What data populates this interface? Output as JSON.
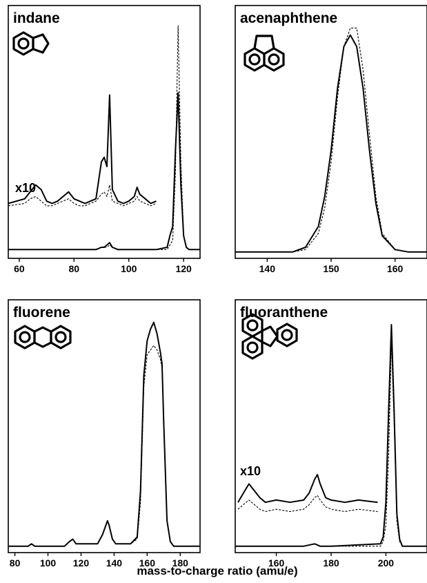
{
  "xlabel": "mass-to-charge ratio (amu/e)",
  "chart_data": [
    {
      "type": "line",
      "title": "indane",
      "xlim": [
        56,
        126
      ],
      "xticks": [
        60,
        80,
        100,
        120
      ],
      "annotation": "x10",
      "structure_icon": "indane-structure-icon",
      "series": [
        {
          "style": "solid",
          "x": [
            56,
            62,
            64,
            66,
            68,
            70,
            72,
            74,
            76,
            78,
            80,
            82,
            84,
            86,
            88,
            90,
            91,
            92,
            93,
            94,
            96,
            98,
            100,
            102,
            103,
            104,
            106,
            108,
            110
          ],
          "y": [
            0.22,
            0.24,
            0.27,
            0.3,
            0.28,
            0.23,
            0.22,
            0.23,
            0.25,
            0.27,
            0.24,
            0.23,
            0.22,
            0.23,
            0.24,
            0.4,
            0.42,
            0.38,
            0.69,
            0.28,
            0.23,
            0.22,
            0.23,
            0.25,
            0.29,
            0.26,
            0.24,
            0.22,
            0.23
          ]
        },
        {
          "style": "dashed",
          "x": [
            56,
            62,
            64,
            66,
            68,
            70,
            72,
            74,
            76,
            78,
            80,
            82,
            84,
            86,
            88,
            90,
            91,
            92,
            93,
            94,
            96,
            98,
            100,
            102,
            103,
            104,
            106,
            108,
            110
          ],
          "y": [
            0.21,
            0.22,
            0.24,
            0.25,
            0.23,
            0.21,
            0.21,
            0.22,
            0.23,
            0.24,
            0.22,
            0.21,
            0.21,
            0.22,
            0.23,
            0.26,
            0.27,
            0.25,
            0.3,
            0.23,
            0.22,
            0.21,
            0.22,
            0.23,
            0.25,
            0.23,
            0.22,
            0.21,
            0.22
          ]
        },
        {
          "style": "solid",
          "x": [
            56,
            88,
            90,
            91,
            92,
            93,
            94,
            96,
            110,
            114,
            115,
            116,
            117,
            118,
            119,
            120,
            121,
            122,
            126
          ],
          "y": [
            0.02,
            0.02,
            0.03,
            0.03,
            0.04,
            0.05,
            0.03,
            0.02,
            0.02,
            0.03,
            0.08,
            0.12,
            0.45,
            0.7,
            0.3,
            0.08,
            0.03,
            0.02,
            0.02
          ]
        },
        {
          "style": "dashed",
          "x": [
            56,
            88,
            90,
            91,
            92,
            93,
            94,
            96,
            110,
            114,
            115,
            116,
            117,
            118,
            119,
            120,
            121,
            122,
            126
          ],
          "y": [
            0.02,
            0.02,
            0.03,
            0.03,
            0.03,
            0.04,
            0.03,
            0.02,
            0.02,
            0.02,
            0.04,
            0.06,
            0.35,
            0.99,
            0.4,
            0.08,
            0.03,
            0.02,
            0.02
          ]
        }
      ]
    },
    {
      "type": "line",
      "title": "acenaphthene",
      "xlim": [
        135,
        165
      ],
      "xticks": [
        140,
        150,
        160
      ],
      "structure_icon": "acenaphthene-structure-icon",
      "series": [
        {
          "style": "solid",
          "x": [
            135,
            144,
            146,
            148,
            149,
            150,
            151,
            152,
            153,
            154,
            155,
            156,
            157,
            158,
            160,
            162,
            165
          ],
          "y": [
            0.01,
            0.01,
            0.03,
            0.12,
            0.25,
            0.45,
            0.72,
            0.9,
            0.95,
            0.9,
            0.72,
            0.45,
            0.22,
            0.08,
            0.02,
            0.01,
            0.01
          ]
        },
        {
          "style": "dashed",
          "x": [
            135,
            144,
            146,
            148,
            149,
            150,
            151,
            152,
            153,
            154,
            155,
            156,
            157,
            158,
            160,
            162,
            165
          ],
          "y": [
            0.01,
            0.01,
            0.02,
            0.09,
            0.2,
            0.4,
            0.68,
            0.9,
            0.98,
            0.98,
            0.8,
            0.52,
            0.25,
            0.09,
            0.02,
            0.01,
            0.01
          ]
        }
      ]
    },
    {
      "type": "line",
      "title": "fluorene",
      "xlim": [
        76,
        192
      ],
      "xticks": [
        80,
        100,
        120,
        140,
        160,
        180
      ],
      "structure_icon": "fluorene-structure-icon",
      "series": [
        {
          "style": "solid",
          "x": [
            76,
            88,
            90,
            92,
            110,
            113,
            115,
            117,
            130,
            133,
            135,
            136,
            137,
            139,
            141,
            150,
            154,
            156,
            158,
            160,
            162,
            164,
            166,
            168,
            169,
            170,
            172,
            174,
            176,
            192
          ],
          "y": [
            0.01,
            0.01,
            0.02,
            0.01,
            0.01,
            0.03,
            0.04,
            0.02,
            0.02,
            0.06,
            0.1,
            0.12,
            0.1,
            0.04,
            0.02,
            0.02,
            0.05,
            0.25,
            0.75,
            0.9,
            0.95,
            0.98,
            0.93,
            0.85,
            0.8,
            0.55,
            0.12,
            0.03,
            0.01,
            0.01
          ]
        },
        {
          "style": "dashed",
          "x": [
            76,
            88,
            90,
            92,
            110,
            113,
            115,
            117,
            130,
            133,
            135,
            136,
            137,
            139,
            141,
            150,
            154,
            156,
            158,
            160,
            162,
            164,
            166,
            168,
            169,
            170,
            172,
            174,
            176,
            192
          ],
          "y": [
            0.01,
            0.01,
            0.02,
            0.01,
            0.01,
            0.03,
            0.04,
            0.02,
            0.02,
            0.06,
            0.1,
            0.12,
            0.1,
            0.04,
            0.02,
            0.02,
            0.04,
            0.2,
            0.7,
            0.84,
            0.86,
            0.88,
            0.86,
            0.82,
            0.78,
            0.55,
            0.12,
            0.03,
            0.01,
            0.01
          ]
        }
      ]
    },
    {
      "type": "line",
      "title": "fluoranthene",
      "xlim": [
        145,
        215
      ],
      "xticks": [
        160,
        180,
        200
      ],
      "annotation": "x10",
      "structure_icon": "fluoranthene-structure-icon",
      "series": [
        {
          "style": "solid",
          "x": [
            146,
            148,
            150,
            152,
            154,
            156,
            160,
            165,
            170,
            172,
            174,
            175,
            176,
            178,
            180,
            185,
            190,
            197
          ],
          "y": [
            0.2,
            0.24,
            0.28,
            0.25,
            0.22,
            0.2,
            0.21,
            0.2,
            0.21,
            0.24,
            0.3,
            0.32,
            0.28,
            0.22,
            0.21,
            0.2,
            0.21,
            0.2
          ]
        },
        {
          "style": "dashed",
          "x": [
            146,
            148,
            150,
            152,
            154,
            156,
            160,
            165,
            170,
            172,
            174,
            175,
            176,
            178,
            180,
            185,
            190,
            197
          ],
          "y": [
            0.17,
            0.19,
            0.21,
            0.19,
            0.17,
            0.16,
            0.17,
            0.16,
            0.17,
            0.19,
            0.22,
            0.23,
            0.21,
            0.18,
            0.17,
            0.16,
            0.17,
            0.16
          ]
        },
        {
          "style": "solid",
          "x": [
            145,
            170,
            174,
            176,
            180,
            198,
            199,
            200,
            201,
            202,
            203,
            204,
            205,
            206,
            215
          ],
          "y": [
            0.01,
            0.01,
            0.02,
            0.01,
            0.01,
            0.02,
            0.05,
            0.2,
            0.6,
            0.97,
            0.6,
            0.15,
            0.04,
            0.01,
            0.01
          ]
        },
        {
          "style": "dashed",
          "x": [
            145,
            170,
            174,
            176,
            180,
            198,
            199,
            200,
            201,
            202,
            203,
            204,
            205,
            206,
            215
          ],
          "y": [
            0.01,
            0.01,
            0.02,
            0.01,
            0.01,
            0.01,
            0.03,
            0.1,
            0.4,
            0.9,
            0.55,
            0.12,
            0.03,
            0.01,
            0.01
          ]
        }
      ]
    }
  ]
}
